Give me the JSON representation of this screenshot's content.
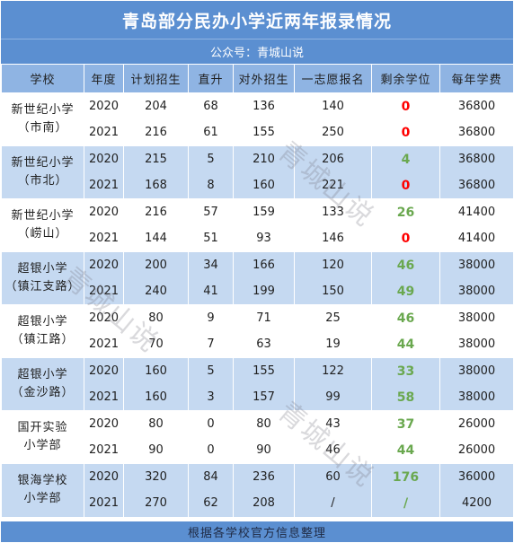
{
  "title": "青岛部分民办小学近两年报录情况",
  "subtitle": "公众号：青城山说",
  "headers": [
    "学校",
    "年度",
    "计划招生",
    "直升",
    "对外招生",
    "一志愿报名",
    "剩余学位",
    "每年学费"
  ],
  "groups": [
    {
      "school": [
        "新世纪小学",
        "（市南）"
      ],
      "rows": [
        [
          "2020",
          "204",
          "68",
          "136",
          "140",
          "0",
          "36800"
        ],
        [
          "2021",
          "216",
          "61",
          "155",
          "250",
          "0",
          "36800"
        ]
      ]
    },
    {
      "school": [
        "新世纪小学",
        "（市北）"
      ],
      "rows": [
        [
          "2020",
          "215",
          "5",
          "210",
          "206",
          "4",
          "36800"
        ],
        [
          "2021",
          "168",
          "8",
          "160",
          "221",
          "0",
          "36800"
        ]
      ]
    },
    {
      "school": [
        "新世纪小学",
        "（崂山）"
      ],
      "rows": [
        [
          "2020",
          "216",
          "57",
          "159",
          "133",
          "26",
          "41400"
        ],
        [
          "2021",
          "144",
          "51",
          "93",
          "146",
          "0",
          "41400"
        ]
      ]
    },
    {
      "school": [
        "超银小学",
        "（镇江支路）"
      ],
      "rows": [
        [
          "2020",
          "200",
          "34",
          "166",
          "120",
          "46",
          "38000"
        ],
        [
          "2021",
          "240",
          "41",
          "199",
          "150",
          "49",
          "38000"
        ]
      ]
    },
    {
      "school": [
        "超银小学",
        "（镇江路）"
      ],
      "rows": [
        [
          "2020",
          "80",
          "9",
          "71",
          "25",
          "46",
          "38000"
        ],
        [
          "2021",
          "70",
          "7",
          "63",
          "19",
          "44",
          "38000"
        ]
      ]
    },
    {
      "school": [
        "超银小学",
        "（金沙路）"
      ],
      "rows": [
        [
          "2020",
          "160",
          "5",
          "155",
          "122",
          "33",
          "38000"
        ],
        [
          "2021",
          "160",
          "3",
          "157",
          "99",
          "58",
          "38000"
        ]
      ]
    },
    {
      "school": [
        "国开实验",
        "小学部"
      ],
      "rows": [
        [
          "2020",
          "80",
          "0",
          "80",
          "43",
          "37",
          "26000"
        ],
        [
          "2021",
          "90",
          "0",
          "90",
          "46",
          "44",
          "26000"
        ]
      ]
    },
    {
      "school": [
        "银海学校",
        "小学部"
      ],
      "rows": [
        [
          "2020",
          "320",
          "84",
          "236",
          "60",
          "176",
          "36000"
        ],
        [
          "2021",
          "270",
          "62",
          "208",
          "/",
          "/",
          "4200"
        ]
      ]
    }
  ],
  "footer": "根据各学校官方信息整理",
  "watermark": "青城山说",
  "colors": {
    "header_bar": "#5b8fd1",
    "column_header": "#8fb4e3",
    "row_blue": "#c5d9f1",
    "zero": "#ff0000",
    "positive": "#6aa84f"
  }
}
